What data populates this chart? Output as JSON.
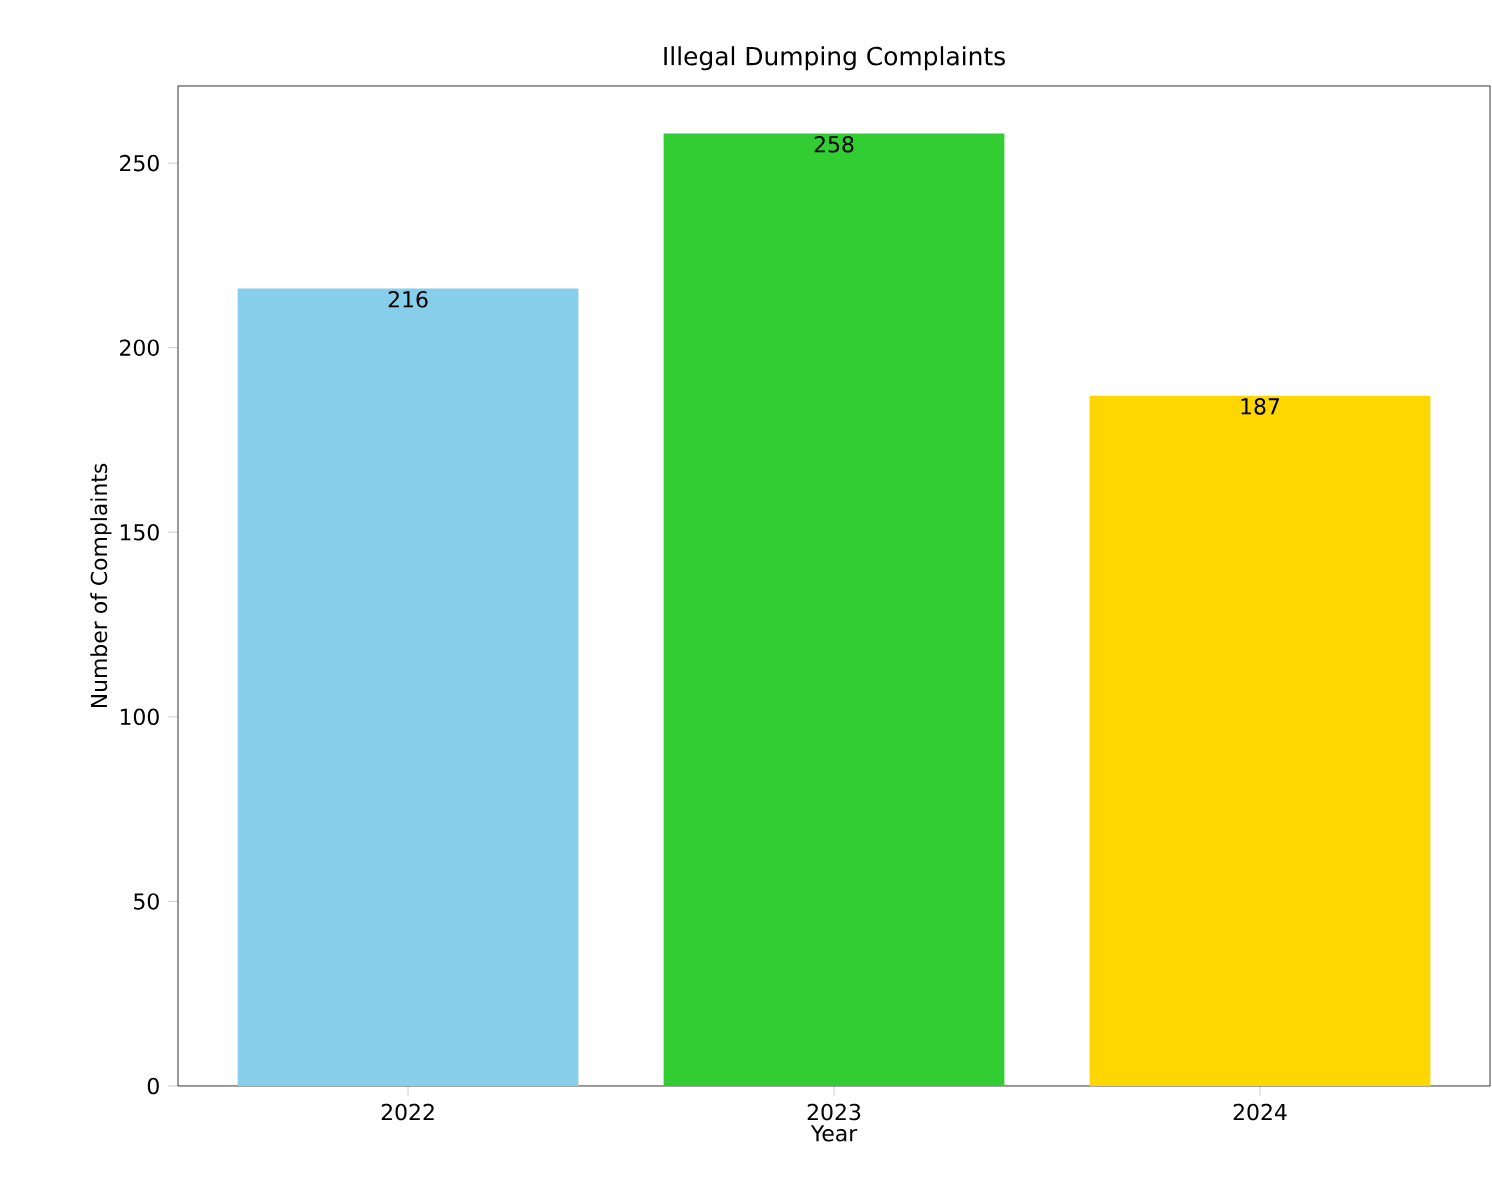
{
  "chart_data": {
    "type": "bar",
    "title": "Illegal Dumping Complaints",
    "xlabel": "Year",
    "ylabel": "Number of Complaints",
    "categories": [
      "2022",
      "2023",
      "2024"
    ],
    "values": [
      216,
      258,
      187
    ],
    "colors": [
      "#87ceeb",
      "#32cd32",
      "#ffd700"
    ],
    "ylim": [
      0,
      270.9
    ],
    "yticks": [
      0,
      50,
      100,
      150,
      200,
      250
    ],
    "data_labels": true
  }
}
